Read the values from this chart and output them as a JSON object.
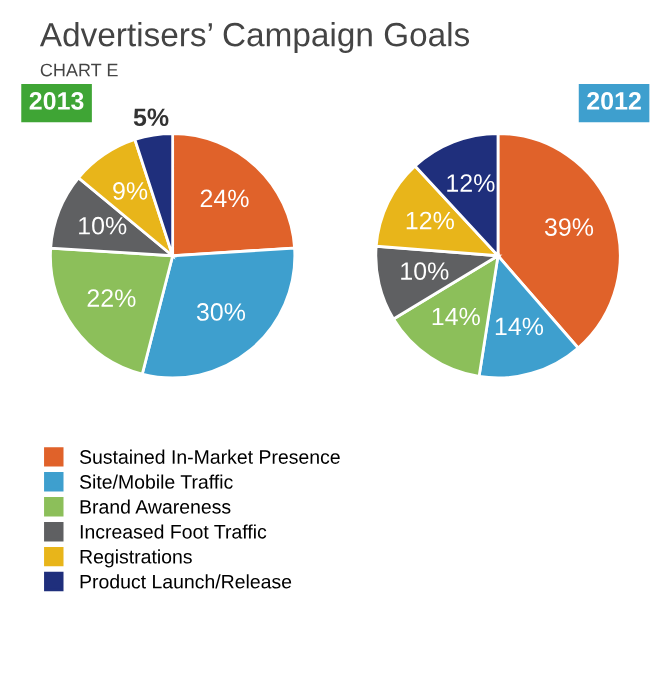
{
  "chart_data": [
    {
      "type": "other",
      "title": "Advertisers’ Campaign Goals",
      "subtitle": "CHART E"
    },
    {
      "type": "pie",
      "title": "2013",
      "categories": [
        "Sustained In-Market Presence",
        "Site/Mobile Traffic",
        "Brand Awareness",
        "Increased Foot Traffic",
        "Registrations",
        "Product Launch/Release"
      ],
      "values": [
        24,
        30,
        22,
        10,
        9,
        5
      ],
      "value_labels": [
        "24%",
        "30%",
        "22%",
        "10%",
        "9%",
        "5%"
      ],
      "colors": [
        "#e0622a",
        "#3e9fce",
        "#8cbf5a",
        "#5f6062",
        "#e8b51a",
        "#1f2f7c"
      ],
      "legend": "bottom"
    },
    {
      "type": "pie",
      "title": "2012",
      "values": [
        39,
        14,
        14,
        10,
        12,
        12
      ],
      "value_labels": [
        "39%",
        "14%",
        "14%",
        "10%",
        "12%",
        "12%"
      ],
      "colors": [
        "#e0622a",
        "#3e9fce",
        "#8cbf5a",
        "#5f6062",
        "#e8b51a",
        "#1f2f7c"
      ]
    }
  ]
}
